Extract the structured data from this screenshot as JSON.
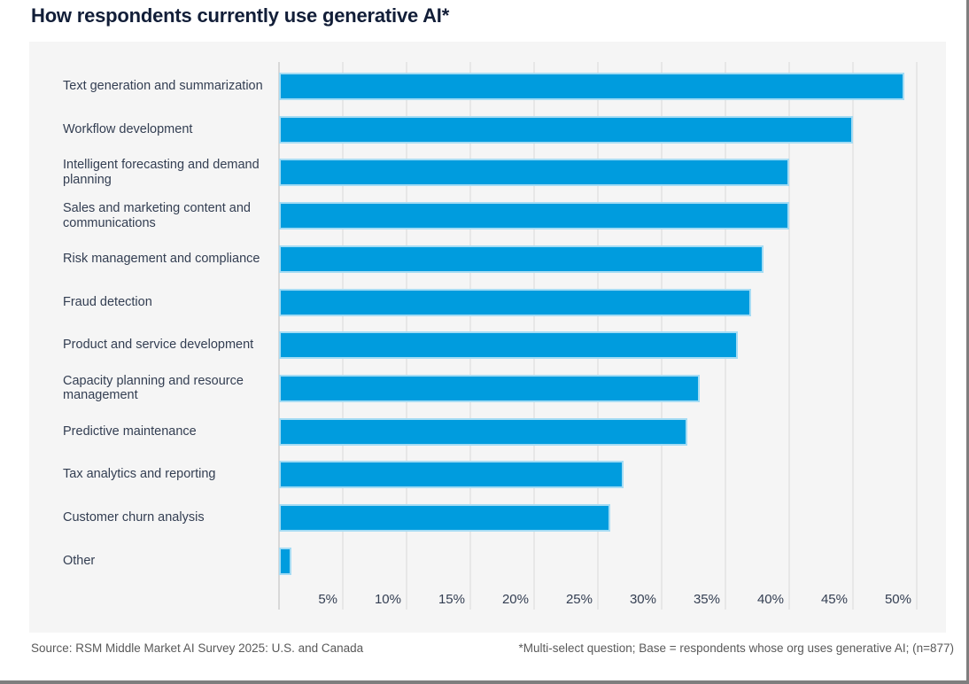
{
  "title": "How respondents currently use generative AI*",
  "footer": {
    "source": "Source: RSM Middle Market AI Survey 2025: U.S. and Canada",
    "footnote": "*Multi-select question; Base = respondents whose org uses generative AI; (n=877)"
  },
  "colors": {
    "bar_fill": "#009CDE",
    "bar_border": "#A5DCF4",
    "title_text": "#121E38",
    "label_text": "#333E52",
    "panel_bg": "#F5F5F5",
    "gridline": "#E7E7E7",
    "axis_line": "#D8D8D8",
    "footer_text": "#595959",
    "frame_border": "#7E7E7E"
  },
  "chart_data": {
    "type": "bar",
    "orientation": "horizontal",
    "title": "How respondents currently use generative AI*",
    "categories": [
      "Text generation and summarization",
      "Workflow development",
      "Intelligent forecasting and demand planning",
      "Sales and marketing content and communications",
      "Risk management and compliance",
      "Fraud detection",
      "Product and service development",
      "Capacity planning and resource management",
      "Predictive maintenance",
      "Tax analytics and reporting",
      "Customer churn analysis",
      "Other"
    ],
    "values": [
      49,
      45,
      40,
      40,
      38,
      37,
      36,
      33,
      32,
      27,
      26,
      1
    ],
    "unit": "%",
    "xlabel": "",
    "ylabel": "",
    "xlim": [
      0,
      52
    ],
    "xtick_values": [
      5,
      10,
      15,
      20,
      25,
      30,
      35,
      40,
      45,
      50
    ],
    "xtick_labels": [
      "5%",
      "10%",
      "15%",
      "20%",
      "25%",
      "30%",
      "35%",
      "40%",
      "45%",
      "50%"
    ],
    "grid": true,
    "legend": "none"
  }
}
